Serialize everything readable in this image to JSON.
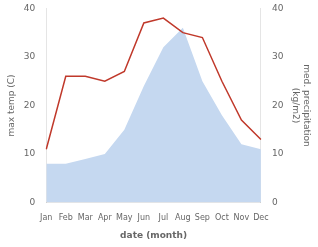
{
  "chart_data": {
    "type": "line",
    "categories": [
      "Jan",
      "Feb",
      "Mar",
      "Apr",
      "May",
      "Jun",
      "Jul",
      "Aug",
      "Sep",
      "Oct",
      "Nov",
      "Dec"
    ],
    "xlabel": "date (month)",
    "ylabel": "max temp (C)",
    "y2label": "med. precipitation\n(kg/m2)",
    "ylim": [
      0,
      40
    ],
    "yticks": [
      0,
      10,
      20,
      30,
      40
    ],
    "y2lim": [
      0,
      40
    ],
    "y2ticks": [
      0,
      10,
      20,
      30,
      40
    ],
    "grid": false,
    "series": [
      {
        "type": "area",
        "color": "#c5d8f0",
        "values": [
          8,
          8,
          9,
          10,
          15,
          24,
          32,
          36,
          25,
          18,
          12,
          11
        ]
      },
      {
        "type": "line",
        "color": "#c0392b",
        "axis": "y2",
        "values": [
          11,
          26,
          26,
          25,
          27,
          37,
          38,
          35,
          34,
          25,
          17,
          13
        ]
      }
    ]
  }
}
